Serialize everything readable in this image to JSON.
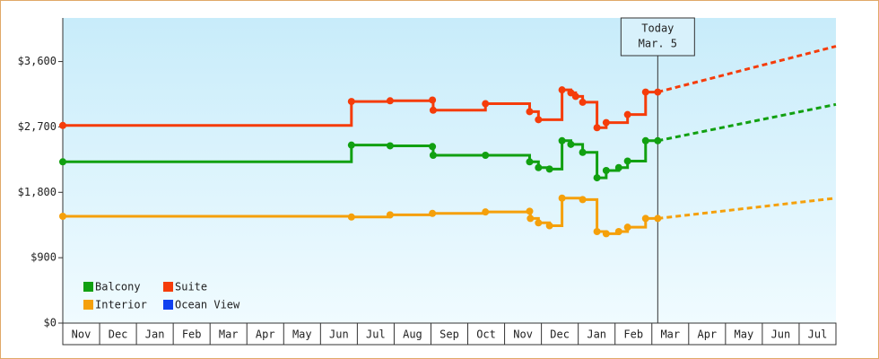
{
  "chart_data": {
    "type": "step-line",
    "xlim": [
      0,
      21
    ],
    "categories": [
      "Nov",
      "Dec",
      "Jan",
      "Feb",
      "Mar",
      "Apr",
      "May",
      "Jun",
      "Jul",
      "Aug",
      "Sep",
      "Oct",
      "Nov",
      "Dec",
      "Jan",
      "Feb",
      "Mar",
      "Apr",
      "May",
      "Jun",
      "Jul"
    ],
    "ylim": [
      0,
      4200
    ],
    "yticks": [
      {
        "value": 0,
        "label": "$0"
      },
      {
        "value": 900,
        "label": "$900"
      },
      {
        "value": 1800,
        "label": "$1,800"
      },
      {
        "value": 2700,
        "label": "$2,700"
      },
      {
        "value": 3600,
        "label": "$3,600"
      }
    ],
    "annotation": {
      "x": 16.16,
      "lines": [
        "Today",
        "Mar. 5"
      ]
    },
    "series": [
      {
        "name": "Balcony",
        "color": "#11a011",
        "x": [
          0,
          7.84,
          8.89,
          10.04,
          10.06,
          11.48,
          12.68,
          12.92,
          13.22,
          13.56,
          13.8,
          14.12,
          14.51,
          14.76,
          15.1,
          15.34,
          15.83,
          16.16
        ],
        "values": [
          2220,
          2450,
          2440,
          2430,
          2310,
          2310,
          2220,
          2140,
          2120,
          2510,
          2460,
          2350,
          2000,
          2100,
          2140,
          2230,
          2510,
          2510
        ],
        "forecast_x": [
          16.16,
          21
        ],
        "forecast": [
          2510,
          3010
        ]
      },
      {
        "name": "Suite",
        "color": "#f53c0a",
        "x": [
          0,
          7.84,
          8.89,
          10.04,
          10.06,
          11.48,
          12.68,
          12.92,
          13.56,
          13.8,
          13.93,
          14.12,
          14.51,
          14.76,
          15.34,
          15.83,
          16.16
        ],
        "values": [
          2720,
          3050,
          3060,
          3070,
          2930,
          3020,
          2910,
          2800,
          3210,
          3170,
          3120,
          3040,
          2690,
          2760,
          2870,
          3180,
          3180
        ],
        "forecast_x": [
          16.16,
          21
        ],
        "forecast": [
          3180,
          3810
        ]
      },
      {
        "name": "Interior",
        "color": "#f5a00a",
        "x": [
          0,
          7.84,
          8.89,
          10.04,
          11.48,
          12.68,
          12.7,
          12.92,
          13.22,
          13.56,
          14.12,
          14.51,
          14.76,
          15.1,
          15.34,
          15.83,
          16.16
        ],
        "values": [
          1470,
          1460,
          1490,
          1510,
          1530,
          1540,
          1440,
          1380,
          1340,
          1720,
          1700,
          1260,
          1230,
          1260,
          1320,
          1440,
          1440
        ],
        "forecast_x": [
          16.16,
          21
        ],
        "forecast": [
          1440,
          1720
        ]
      },
      {
        "name": "Ocean View",
        "color": "#1040f0",
        "x": [],
        "values": []
      }
    ]
  }
}
